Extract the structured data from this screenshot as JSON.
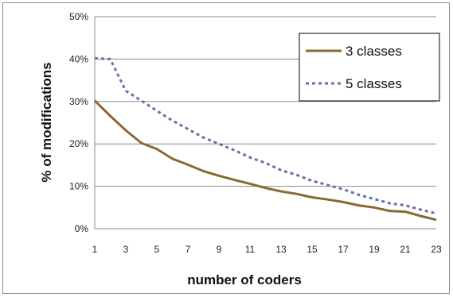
{
  "chart_data": {
    "type": "line",
    "xlabel": "number of coders",
    "ylabel": "% of modifications",
    "x": [
      1,
      2,
      3,
      4,
      5,
      6,
      7,
      8,
      9,
      10,
      11,
      12,
      13,
      14,
      15,
      16,
      17,
      18,
      19,
      20,
      21,
      22,
      23
    ],
    "x_ticks": [
      "1",
      "3",
      "5",
      "7",
      "9",
      "11",
      "13",
      "15",
      "17",
      "19",
      "21",
      "23"
    ],
    "y_ticks": [
      "0%",
      "10%",
      "20%",
      "30%",
      "40%",
      "50%"
    ],
    "ylim": [
      0,
      50
    ],
    "grid": "horizontal",
    "legend_position": "top-right",
    "series": [
      {
        "name": "3 classes",
        "color": "#8B6A2E",
        "style": "solid",
        "values": [
          30.2,
          26.6,
          23.2,
          20.2,
          18.8,
          16.5,
          15.1,
          13.6,
          12.5,
          11.5,
          10.6,
          9.6,
          8.8,
          8.2,
          7.4,
          6.9,
          6.3,
          5.5,
          5.0,
          4.2,
          4.0,
          3.0,
          2.1
        ]
      },
      {
        "name": "5 classes",
        "color": "#6B6FA6",
        "style": "dotted",
        "values": [
          40.2,
          40.0,
          32.5,
          30.2,
          27.8,
          25.5,
          23.5,
          21.5,
          20.0,
          18.5,
          16.8,
          15.5,
          13.8,
          12.7,
          11.3,
          10.3,
          9.3,
          8.0,
          7.0,
          6.0,
          5.5,
          4.5,
          3.6
        ]
      }
    ]
  }
}
